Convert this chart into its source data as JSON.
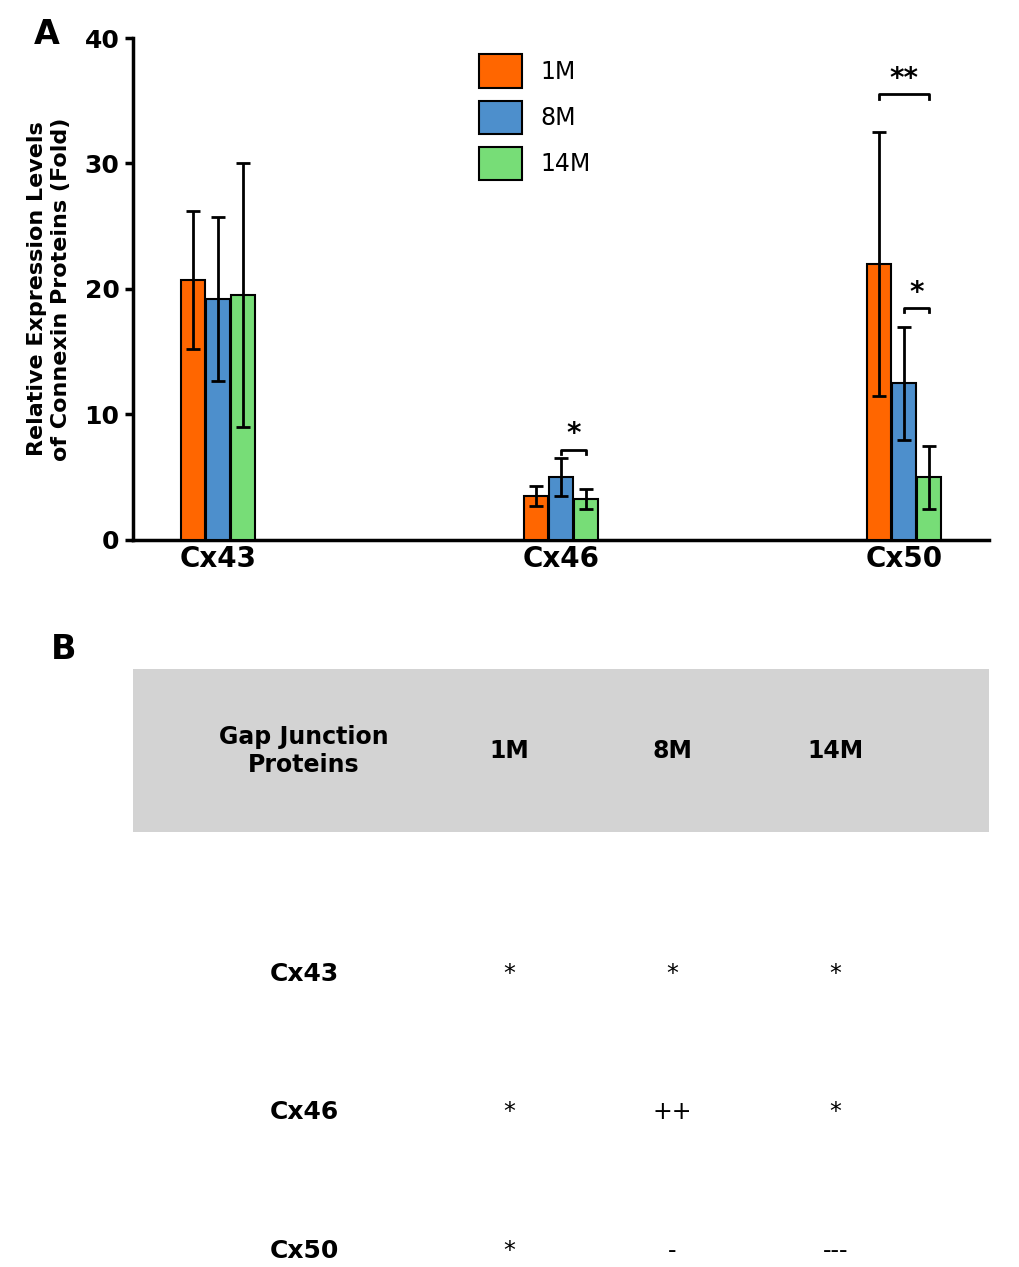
{
  "bar_groups": [
    "Cx43",
    "Cx46",
    "Cx50"
  ],
  "age_labels": [
    "1M",
    "8M",
    "14M"
  ],
  "bar_values": [
    [
      20.7,
      19.2,
      19.5
    ],
    [
      3.5,
      5.0,
      3.3
    ],
    [
      22.0,
      12.5,
      5.0
    ]
  ],
  "bar_errors": [
    [
      5.5,
      6.5,
      10.5
    ],
    [
      0.8,
      1.5,
      0.8
    ],
    [
      10.5,
      4.5,
      2.5
    ]
  ],
  "bar_colors": [
    "#FF6600",
    "#4D8FCC",
    "#77DD77"
  ],
  "bar_edgecolor": "#000000",
  "ylim": [
    0,
    40
  ],
  "yticks": [
    0,
    10,
    20,
    30,
    40
  ],
  "ylabel": "Relative Expression Levels\nof Connexin Proteins (Fold)",
  "panel_A_label": "A",
  "panel_B_label": "B",
  "legend_labels": [
    "1M",
    "8M",
    "14M"
  ],
  "table_header_bg": "#D3D3D3",
  "table_row_labels": [
    "Cx43",
    "Cx46",
    "Cx50"
  ],
  "table_col_headers": [
    "Gap Junction\nProteins",
    "1M",
    "8M",
    "14M"
  ],
  "table_data": [
    [
      "*",
      "*",
      "*"
    ],
    [
      "*",
      "++",
      "*"
    ],
    [
      "*",
      "-",
      "---"
    ]
  ],
  "figsize": [
    10.2,
    12.67
  ],
  "dpi": 100
}
